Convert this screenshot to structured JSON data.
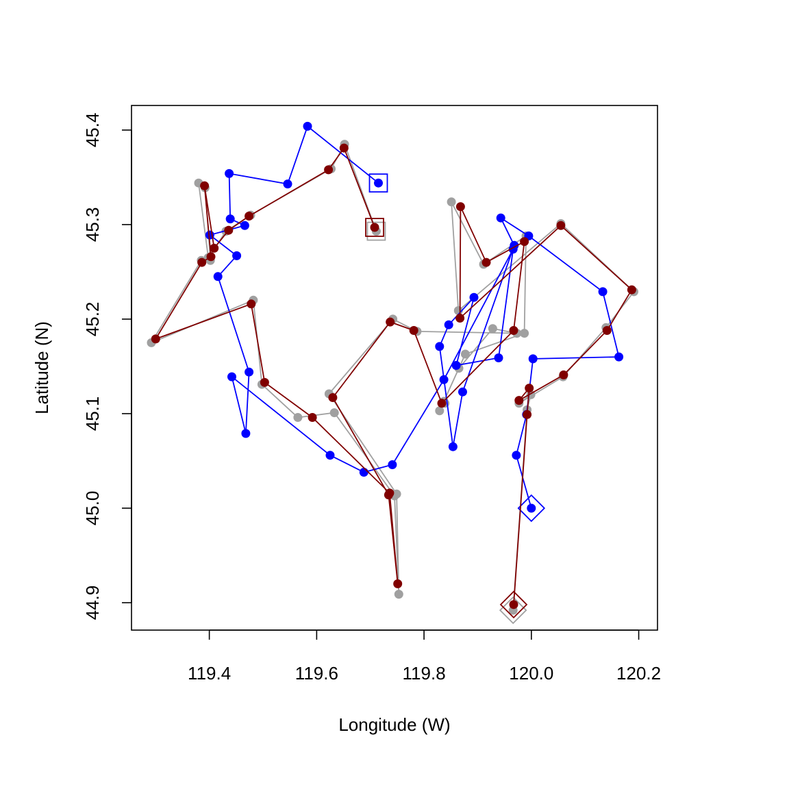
{
  "chart_data": {
    "type": "scatter",
    "title": "",
    "xlabel": "Longitude (W)",
    "ylabel": "Latitude (N)",
    "xlim": [
      119.255,
      120.235
    ],
    "ylim": [
      44.871,
      45.426
    ],
    "x_ticks": [
      119.4,
      119.6,
      119.8,
      120.0,
      120.2
    ],
    "x_tick_labels": [
      "119.4",
      "119.6",
      "119.8",
      "120.0",
      "120.2"
    ],
    "y_ticks": [
      44.9,
      45.0,
      45.1,
      45.2,
      45.3,
      45.4
    ],
    "y_tick_labels": [
      "44.9",
      "45.0",
      "45.1",
      "45.2",
      "45.3",
      "45.4"
    ],
    "grid": false,
    "legend": "none",
    "series": [
      {
        "color": "#a0a0a0",
        "start_marker": "diamond",
        "end_marker": "square",
        "x": [
          119.966,
          119.992,
          119.999,
          119.977,
          120.059,
          120.139,
          120.191,
          120.055,
          119.864,
          119.851,
          119.911,
          119.99,
          119.987,
          119.877,
          119.829,
          119.839,
          119.837,
          119.865,
          119.928,
          119.973,
          119.787,
          119.742,
          119.623,
          119.749,
          119.753,
          119.745,
          119.633,
          119.565,
          119.498,
          119.482,
          119.292,
          119.385,
          119.402,
          119.392,
          119.38,
          119.398,
          119.431,
          119.477,
          119.627,
          119.652,
          119.711
        ],
        "y": [
          44.892,
          45.104,
          45.12,
          45.111,
          45.139,
          45.191,
          45.229,
          45.301,
          45.209,
          45.324,
          45.258,
          45.288,
          45.185,
          45.163,
          45.103,
          45.111,
          45.113,
          45.148,
          45.19,
          45.185,
          45.187,
          45.2,
          45.121,
          45.015,
          44.909,
          45.013,
          45.101,
          45.096,
          45.131,
          45.22,
          45.175,
          45.262,
          45.262,
          45.339,
          45.344,
          45.265,
          45.293,
          45.31,
          45.359,
          45.385,
          45.293
        ]
      },
      {
        "color": "#0000ff",
        "start_marker": "diamond",
        "end_marker": "square",
        "x": [
          120.0,
          119.972,
          119.991,
          120.003,
          120.163,
          120.133,
          119.995,
          119.943,
          119.968,
          119.872,
          119.854,
          119.829,
          119.846,
          119.893,
          119.86,
          119.939,
          119.966,
          119.837,
          119.741,
          119.688,
          119.625,
          119.442,
          119.468,
          119.474,
          119.416,
          119.451,
          119.401,
          119.466,
          119.439,
          119.437,
          119.546,
          119.583,
          119.715
        ],
        "y": [
          45.0,
          45.056,
          45.099,
          45.158,
          45.16,
          45.229,
          45.288,
          45.307,
          45.278,
          45.123,
          45.065,
          45.171,
          45.194,
          45.223,
          45.151,
          45.159,
          45.274,
          45.136,
          45.046,
          45.038,
          45.056,
          45.139,
          45.079,
          45.144,
          45.245,
          45.267,
          45.289,
          45.299,
          45.306,
          45.354,
          45.343,
          45.404,
          45.344
        ]
      },
      {
        "color": "#800000",
        "start_marker": "diamond",
        "end_marker": "square",
        "x": [
          119.967,
          119.992,
          119.996,
          119.977,
          120.06,
          120.141,
          120.187,
          120.055,
          119.867,
          119.868,
          119.916,
          119.987,
          119.967,
          119.833,
          119.781,
          119.737,
          119.63,
          119.734,
          119.751,
          119.736,
          119.592,
          119.503,
          119.478,
          119.3,
          119.386,
          119.403,
          119.391,
          119.409,
          119.436,
          119.474,
          119.622,
          119.651,
          119.708
        ],
        "y": [
          44.898,
          45.099,
          45.127,
          45.114,
          45.141,
          45.188,
          45.231,
          45.299,
          45.201,
          45.319,
          45.26,
          45.282,
          45.188,
          45.111,
          45.188,
          45.197,
          45.117,
          45.014,
          44.92,
          45.016,
          45.096,
          45.133,
          45.216,
          45.179,
          45.26,
          45.266,
          45.341,
          45.275,
          45.294,
          45.309,
          45.358,
          45.381,
          45.297
        ]
      }
    ]
  }
}
